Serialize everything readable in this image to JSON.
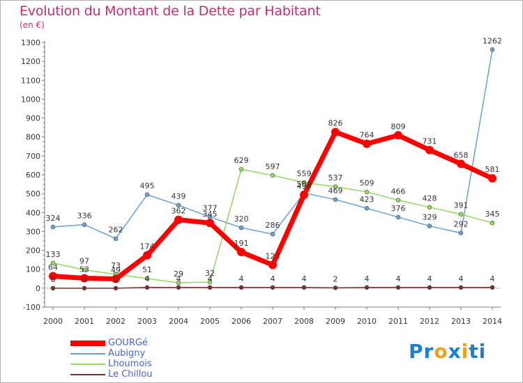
{
  "chart_data": {
    "type": "line",
    "title": "Evolution du Montant de la Dette par Habitant",
    "subtitle": "(en €)",
    "x": [
      "2000",
      "2001",
      "2002",
      "2003",
      "2004",
      "2005",
      "2006",
      "2007",
      "2008",
      "2009",
      "2010",
      "2011",
      "2012",
      "2013",
      "2014"
    ],
    "ylim": [
      -100,
      1300
    ],
    "yticks": [
      -100,
      0,
      100,
      200,
      300,
      400,
      500,
      600,
      700,
      800,
      900,
      1000,
      1100,
      1200,
      1300
    ],
    "grid": false,
    "legend_position": "bottom-left",
    "series": [
      {
        "name": "GOURGé",
        "color": "#ff0000",
        "values": [
          64,
          53,
          49,
          174,
          362,
          345,
          191,
          123,
          494,
          826,
          764,
          809,
          731,
          658,
          581
        ]
      },
      {
        "name": "Aubigny",
        "color": "#6a9fd0",
        "values": [
          324,
          336,
          262,
          495,
          439,
          377,
          320,
          286,
          504,
          469,
          423,
          376,
          329,
          292,
          1262
        ]
      },
      {
        "name": "Lhoumois",
        "color": "#90d860",
        "values": [
          133,
          97,
          73,
          51,
          29,
          32,
          629,
          597,
          559,
          537,
          509,
          466,
          428,
          391,
          345
        ]
      },
      {
        "name": "Le Chillou",
        "color": "#7a2e2e",
        "values": [
          0,
          0,
          0,
          4,
          4,
          4,
          4,
          4,
          4,
          2,
          4,
          4,
          4,
          4,
          4
        ]
      }
    ]
  },
  "logo": {
    "text": "Proxiti",
    "letters": [
      "P",
      "r",
      "o",
      "x",
      "i",
      "t",
      "i"
    ],
    "colors": [
      "#1a7fd0",
      "#1a7fd0",
      "#f0a020",
      "#1a7fd0",
      "#f0a020",
      "#1a7fd0",
      "#1a7fd0"
    ]
  }
}
